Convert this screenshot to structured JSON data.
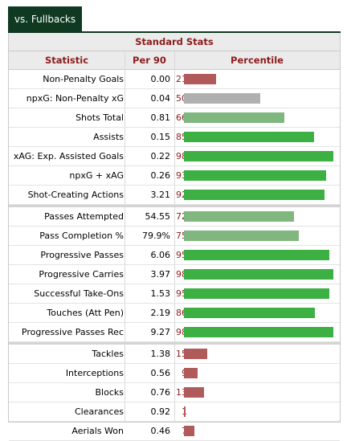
{
  "tab": {
    "label": "vs. Fullbacks"
  },
  "table": {
    "title": "Standard Stats",
    "headers": {
      "statistic": "Statistic",
      "per90": "Per 90",
      "percentile": "Percentile"
    },
    "colors": {
      "high": "#3cb043",
      "mid": "#7fb77e",
      "avg": "#b0b0b0",
      "low": "#b15a5a",
      "header_text": "#8c1b1b",
      "tab_bg": "#0f3a21"
    },
    "groups": [
      [
        {
          "label": "Non-Penalty Goals",
          "per90": "0.00",
          "percentile": 21
        },
        {
          "label": "npxG: Non-Penalty xG",
          "per90": "0.04",
          "percentile": 50
        },
        {
          "label": "Shots Total",
          "per90": "0.81",
          "percentile": 66
        },
        {
          "label": "Assists",
          "per90": "0.15",
          "percentile": 85
        },
        {
          "label": "xAG: Exp. Assisted Goals",
          "per90": "0.22",
          "percentile": 98
        },
        {
          "label": "npxG + xAG",
          "per90": "0.26",
          "percentile": 93
        },
        {
          "label": "Shot-Creating Actions",
          "per90": "3.21",
          "percentile": 92
        }
      ],
      [
        {
          "label": "Passes Attempted",
          "per90": "54.55",
          "percentile": 72
        },
        {
          "label": "Pass Completion %",
          "per90": "79.9%",
          "percentile": 75
        },
        {
          "label": "Progressive Passes",
          "per90": "6.06",
          "percentile": 95
        },
        {
          "label": "Progressive Carries",
          "per90": "3.97",
          "percentile": 98
        },
        {
          "label": "Successful Take-Ons",
          "per90": "1.53",
          "percentile": 95
        },
        {
          "label": "Touches (Att Pen)",
          "per90": "2.19",
          "percentile": 86
        },
        {
          "label": "Progressive Passes Rec",
          "per90": "9.27",
          "percentile": 98
        }
      ],
      [
        {
          "label": "Tackles",
          "per90": "1.38",
          "percentile": 15
        },
        {
          "label": "Interceptions",
          "per90": "0.56",
          "percentile": 9
        },
        {
          "label": "Blocks",
          "per90": "0.76",
          "percentile": 13
        },
        {
          "label": "Clearances",
          "per90": "0.92",
          "percentile": 1
        },
        {
          "label": "Aerials Won",
          "per90": "0.46",
          "percentile": 7
        }
      ]
    ]
  }
}
